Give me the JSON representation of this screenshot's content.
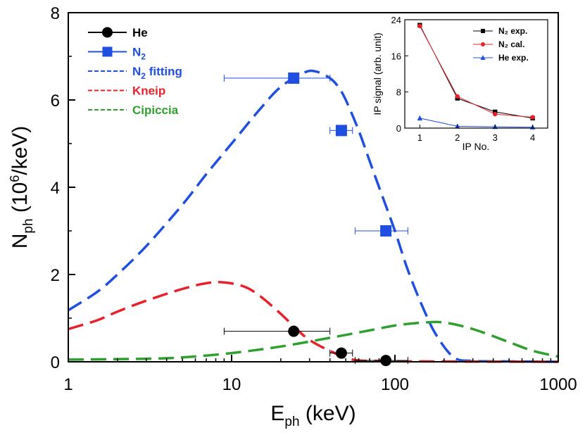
{
  "chart_data": [
    {
      "type": "line",
      "xscale": "log",
      "xlabel": "E",
      "xlabel_sub": "ph",
      "xlabel_unit": " (keV)",
      "ylabel": "N",
      "ylabel_sub": "ph",
      "ylabel_unit_pre": " (10",
      "ylabel_unit_sup": "6",
      "ylabel_unit_post": "/keV)",
      "xlim": [
        1,
        1000
      ],
      "ylim": [
        0,
        8
      ],
      "xticks": [
        {
          "v": 1,
          "label": "1"
        },
        {
          "v": 10,
          "label": "10"
        },
        {
          "v": 100,
          "label": "100"
        },
        {
          "v": 1000,
          "label": "1000"
        }
      ],
      "yticks": [
        {
          "v": 0,
          "label": "0"
        },
        {
          "v": 2,
          "label": "2"
        },
        {
          "v": 4,
          "label": "4"
        },
        {
          "v": 6,
          "label": "6"
        },
        {
          "v": 8,
          "label": "8"
        }
      ],
      "legend": [
        {
          "name": "He",
          "sub": "",
          "suffix": "",
          "color": "#000000",
          "style": "line-circle"
        },
        {
          "name": "N",
          "sub": "2",
          "suffix": "",
          "color": "#1f4fe0",
          "style": "line-square"
        },
        {
          "name": "N",
          "sub": "2",
          "suffix": " fitting",
          "color": "#1f4fe0",
          "style": "dash"
        },
        {
          "name": "Kneip",
          "sub": "",
          "suffix": "",
          "color": "#e8202a",
          "style": "dash"
        },
        {
          "name": "Cipiccia",
          "sub": "",
          "suffix": "",
          "color": "#2ea02e",
          "style": "dash"
        }
      ],
      "series": [
        {
          "name": "He",
          "kind": "points",
          "marker": "circle",
          "color": "#000000",
          "points": [
            {
              "x": 24,
              "y": 0.7,
              "xerr": [
                9,
                40
              ]
            },
            {
              "x": 47,
              "y": 0.2,
              "xerr": [
                40,
                55
              ]
            },
            {
              "x": 88,
              "y": 0.03,
              "xerr": [
                57,
                120
              ]
            }
          ]
        },
        {
          "name": "N2",
          "kind": "points",
          "marker": "square",
          "color": "#1f4fe0",
          "points": [
            {
              "x": 24,
              "y": 6.5,
              "xerr": [
                9,
                40
              ]
            },
            {
              "x": 47,
              "y": 5.3,
              "xerr": [
                40,
                55
              ]
            },
            {
              "x": 88,
              "y": 3.0,
              "xerr": [
                57,
                120
              ]
            }
          ]
        },
        {
          "name": "N2 fitting",
          "kind": "dashed",
          "color": "#1f4fe0",
          "x": [
            1,
            1.5,
            2,
            3,
            5,
            7,
            10,
            15,
            20,
            28,
            33,
            40,
            45,
            50,
            60,
            70,
            80,
            100,
            120,
            150,
            180,
            230,
            300,
            500,
            1000
          ],
          "y": [
            1.18,
            1.6,
            2.0,
            2.65,
            3.6,
            4.3,
            5.0,
            5.8,
            6.3,
            6.63,
            6.65,
            6.5,
            6.3,
            6.0,
            5.3,
            4.6,
            4.0,
            3.0,
            2.1,
            1.2,
            0.6,
            0.1,
            0.02,
            0.01,
            0.0
          ]
        },
        {
          "name": "Kneip",
          "kind": "dashed",
          "color": "#e8202a",
          "x": [
            1,
            1.5,
            2,
            3,
            5,
            7,
            9,
            12,
            15,
            20,
            25,
            30,
            40,
            55,
            80,
            150,
            1000
          ],
          "y": [
            0.75,
            0.95,
            1.15,
            1.4,
            1.67,
            1.8,
            1.82,
            1.72,
            1.5,
            1.1,
            0.75,
            0.5,
            0.25,
            0.05,
            0.02,
            0.01,
            0.0
          ]
        },
        {
          "name": "Cipiccia",
          "kind": "dashed",
          "color": "#2ea02e",
          "x": [
            1,
            3,
            5,
            10,
            20,
            40,
            70,
            100,
            150,
            200,
            300,
            500,
            700,
            1000
          ],
          "y": [
            0.05,
            0.07,
            0.1,
            0.2,
            0.35,
            0.55,
            0.72,
            0.83,
            0.9,
            0.9,
            0.75,
            0.45,
            0.25,
            0.12
          ]
        }
      ]
    },
    {
      "type": "line",
      "role": "inset",
      "xlabel": "IP No.",
      "ylabel": "IP signal (arb. unit)",
      "xlim": [
        0.6,
        4.4
      ],
      "ylim": [
        0,
        24
      ],
      "xticks": [
        1,
        2,
        3,
        4
      ],
      "yticks": [
        0,
        8,
        16,
        24
      ],
      "legend": [
        {
          "label": "N₂ exp.",
          "color": "#000000",
          "marker": "square"
        },
        {
          "label": "N₂ cal.",
          "color": "#e8202a",
          "marker": "circle"
        },
        {
          "label": "He exp.",
          "color": "#1f4fe0",
          "marker": "triangle"
        }
      ],
      "series": [
        {
          "name": "N₂ exp.",
          "color": "#000000",
          "marker": "square",
          "x": [
            1,
            2,
            3,
            4
          ],
          "y": [
            22.8,
            6.6,
            3.6,
            2.2
          ]
        },
        {
          "name": "N₂ cal.",
          "color": "#e8202a",
          "marker": "circle",
          "x": [
            1,
            2,
            3,
            4
          ],
          "y": [
            22.6,
            7.0,
            3.1,
            2.4
          ]
        },
        {
          "name": "He exp.",
          "color": "#1f4fe0",
          "marker": "triangle",
          "x": [
            1,
            2,
            3,
            4
          ],
          "y": [
            2.2,
            0.4,
            0.3,
            0.2
          ]
        }
      ]
    }
  ]
}
